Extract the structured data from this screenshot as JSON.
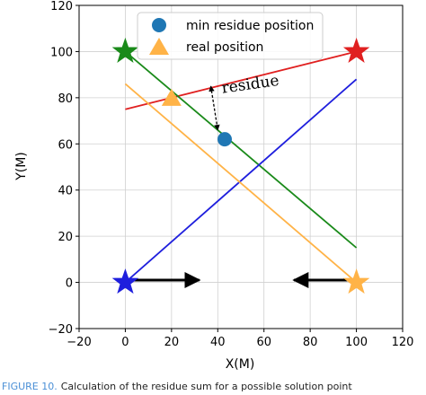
{
  "chart_data": {
    "type": "scatter",
    "xlabel": "X(M)",
    "ylabel": "Y(M)",
    "xlim": [
      -20,
      120
    ],
    "ylim": [
      -20,
      120
    ],
    "xticks": [
      -20,
      0,
      20,
      40,
      60,
      80,
      100,
      120
    ],
    "yticks": [
      -20,
      0,
      20,
      40,
      60,
      80,
      100,
      120
    ],
    "grid": true,
    "legend_position": "top-center",
    "legend": [
      {
        "label": "min residue position",
        "marker": "circle",
        "color": "#1f77b4"
      },
      {
        "label": "real position",
        "marker": "triangle",
        "color": "#ffb347"
      }
    ],
    "points": [
      {
        "series": "min residue position",
        "x": 43,
        "y": 62
      },
      {
        "series": "real position",
        "x": 20,
        "y": 80
      }
    ],
    "stations": [
      {
        "x": 0,
        "y": 100,
        "color": "#1a8a1a"
      },
      {
        "x": 100,
        "y": 100,
        "color": "#e02020"
      },
      {
        "x": 0,
        "y": 0,
        "color": "#1f1fdd"
      },
      {
        "x": 100,
        "y": 0,
        "color": "#ffb347"
      }
    ],
    "lines": [
      {
        "color": "#e02020",
        "x": [
          0,
          100
        ],
        "y": [
          75,
          100
        ]
      },
      {
        "color": "#1a8a1a",
        "x": [
          0,
          100
        ],
        "y": [
          100,
          15
        ]
      },
      {
        "color": "#1f1fdd",
        "x": [
          0,
          100
        ],
        "y": [
          0,
          88
        ]
      },
      {
        "color": "#ffb347",
        "x": [
          0,
          100
        ],
        "y": [
          86,
          0
        ]
      }
    ],
    "arrows": [
      {
        "from": [
          0,
          1
        ],
        "to": [
          32,
          1
        ]
      },
      {
        "from": [
          100,
          1
        ],
        "to": [
          73,
          1
        ]
      }
    ],
    "annotation": {
      "text": "residue",
      "x": 42,
      "y": 82,
      "arrow_from": [
        37,
        85
      ],
      "arrow_to": [
        40,
        66
      ]
    }
  },
  "caption": {
    "prefix": "FIGURE 10.",
    "text": "Calculation of the residue sum for a possible solution point"
  }
}
